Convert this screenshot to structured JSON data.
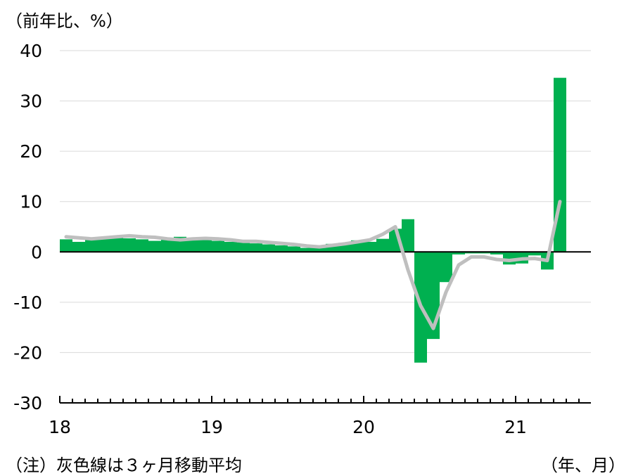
{
  "unit_label": "（前年比、%）",
  "note": "（注）灰色線は３ヶ月移動平均",
  "x_unit_label": "（年、月）",
  "chart_data": {
    "type": "bar",
    "yticks": [
      40,
      30,
      20,
      10,
      0,
      -10,
      -20,
      -30
    ],
    "ytick_labels": [
      "40",
      "30",
      "20",
      "10",
      "0",
      "-10",
      "-20",
      "-30"
    ],
    "ylim": [
      -30,
      40
    ],
    "grid": true,
    "xtick_labels": [
      "18",
      "19",
      "20",
      "21"
    ],
    "start": "2018-01",
    "months": [
      "2018-01",
      "2018-02",
      "2018-03",
      "2018-04",
      "2018-05",
      "2018-06",
      "2018-07",
      "2018-08",
      "2018-09",
      "2018-10",
      "2018-11",
      "2018-12",
      "2019-01",
      "2019-02",
      "2019-03",
      "2019-04",
      "2019-05",
      "2019-06",
      "2019-07",
      "2019-08",
      "2019-09",
      "2019-10",
      "2019-11",
      "2019-12",
      "2020-01",
      "2020-02",
      "2020-03",
      "2020-04",
      "2020-05",
      "2020-06",
      "2020-07",
      "2020-08",
      "2020-09",
      "2020-10",
      "2020-11",
      "2020-12",
      "2021-01",
      "2021-02",
      "2021-03",
      "2021-04"
    ],
    "bar_color": "#00b050",
    "line_color": "#bfbfbf",
    "bars": [
      2.5,
      2.0,
      2.5,
      2.8,
      3.0,
      2.7,
      2.5,
      2.2,
      2.6,
      3.0,
      2.8,
      2.5,
      2.2,
      2.0,
      1.9,
      1.7,
      1.5,
      1.3,
      1.1,
      0.8,
      0.8,
      1.6,
      1.8,
      2.3,
      2.0,
      2.6,
      4.6,
      6.5,
      -22.0,
      -17.3,
      -6.0,
      -0.5,
      -0.3,
      -0.3,
      -0.5,
      -2.5,
      -2.3,
      -0.7,
      -3.5,
      34.6
    ],
    "moving_avg": [
      3.0,
      2.8,
      2.6,
      2.8,
      3.0,
      3.2,
      3.0,
      2.9,
      2.6,
      2.4,
      2.6,
      2.7,
      2.6,
      2.4,
      2.1,
      2.1,
      1.9,
      1.7,
      1.5,
      1.2,
      1.0,
      1.3,
      1.6,
      2.0,
      2.4,
      3.5,
      5.0,
      -3.6,
      -10.7,
      -15.2,
      -8.0,
      -2.6,
      -1.0,
      -1.0,
      -1.5,
      -1.7,
      -1.4,
      -1.3,
      -1.7,
      10.0
    ]
  }
}
